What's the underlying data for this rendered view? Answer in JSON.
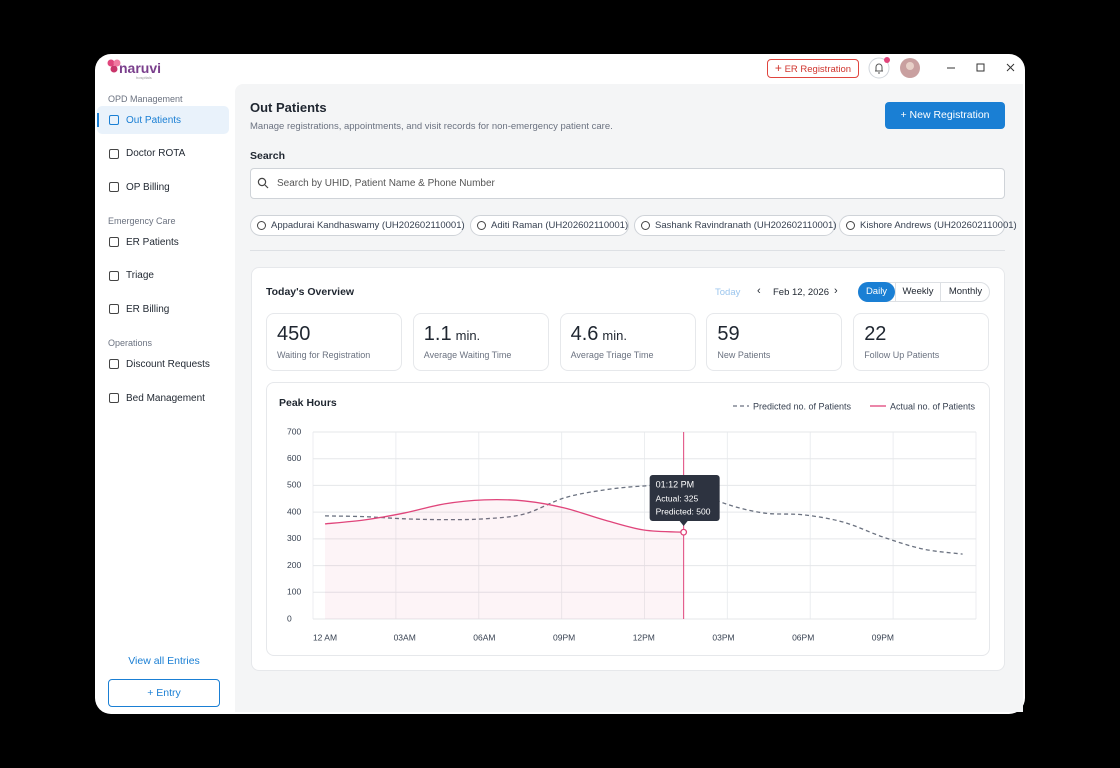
{
  "app": {
    "logo": "naruvi",
    "logo_sub": "hospitals",
    "er_button": "ER Registration"
  },
  "sidebar": {
    "groups": [
      {
        "label": "OPD Management",
        "items": [
          "Out Patients",
          "Doctor ROTA",
          "OP Billing"
        ]
      },
      {
        "label": "Emergency Care",
        "items": [
          "ER Patients",
          "Triage",
          "ER Billing"
        ]
      },
      {
        "label": "Operations",
        "items": [
          "Discount Requests",
          "Bed Management"
        ]
      }
    ],
    "view_all": "View all Entries",
    "entry_button": "+ Entry"
  },
  "header": {
    "title": "Out Patients",
    "subtitle": "Manage registrations, appointments, and visit records for non-emergency patient care.",
    "new_button": "+ New Registration"
  },
  "search": {
    "label": "Search",
    "placeholder": "Search by UHID, Patient Name & Phone Number",
    "recent": [
      "Appadurai Kandhaswamy (UH202602110001)",
      "Aditi Raman (UH202602110001)",
      "Sashank Ravindranath (UH202602110001)",
      "Kishore Andrews (UH202602110001)"
    ]
  },
  "overview": {
    "title": "Today's Overview",
    "today": "Today",
    "date": "Feb 12, 2026",
    "tabs": [
      "Daily",
      "Weekly",
      "Monthly"
    ],
    "stats": [
      {
        "value": 450,
        "label": "Waiting for Registration"
      },
      {
        "value": 1.1,
        "unit": "min.",
        "label": "Average Waiting Time"
      },
      {
        "value": 4.6,
        "unit": "min.",
        "label": "Average Triage Time"
      },
      {
        "value": 59,
        "label": "New Patients"
      },
      {
        "value": 22,
        "label": "Follow Up Patients"
      }
    ]
  },
  "chart_data": {
    "type": "line",
    "title": "Peak Hours",
    "categories": [
      "12 AM",
      null,
      "03AM",
      null,
      "06AM",
      null,
      "09PM",
      null,
      "12PM",
      null,
      "03PM",
      null,
      "06PM",
      null,
      "09PM",
      null,
      null
    ],
    "series": [
      {
        "name": "Predicted no. of Patients",
        "color": "#6b7280",
        "dashed": true,
        "values": [
          386,
          383,
          375,
          372,
          375,
          393,
          453,
          483,
          498,
          500,
          434,
          397,
          390,
          363,
          307,
          262,
          243
        ]
      },
      {
        "name": "Actual no. of Patients",
        "color": "#e0457b",
        "area": true,
        "values": [
          356,
          371,
          397,
          431,
          446,
          442,
          416,
          371,
          333,
          325,
          null,
          null,
          null,
          null,
          null,
          null,
          null
        ]
      }
    ],
    "ylim": [
      0,
      700
    ],
    "yticks": [
      0,
      100,
      200,
      300,
      400,
      500,
      600,
      700
    ],
    "grid": true,
    "tooltip": {
      "time": "01:12 PM",
      "actual": "Actual: 325",
      "predicted": "Predicted: 500"
    }
  }
}
